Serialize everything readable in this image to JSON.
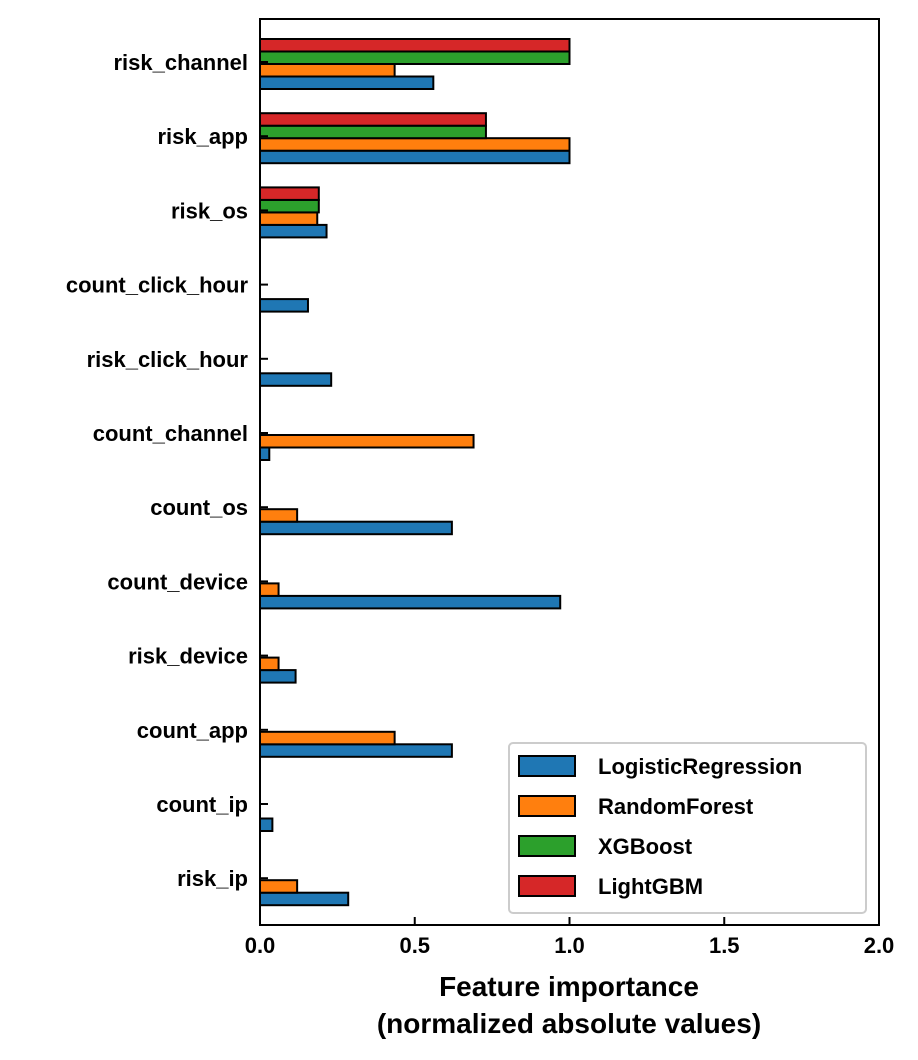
{
  "chart_data": {
    "type": "bar",
    "orientation": "horizontal",
    "categories": [
      "risk_channel",
      "risk_app",
      "risk_os",
      "count_click_hour",
      "risk_click_hour",
      "count_channel",
      "count_os",
      "count_device",
      "risk_device",
      "count_app",
      "count_ip",
      "risk_ip"
    ],
    "series": [
      {
        "name": "LogisticRegression",
        "color": "#1f77b4",
        "values": [
          0.56,
          1.0,
          0.215,
          0.155,
          0.23,
          0.03,
          0.62,
          0.97,
          0.115,
          0.62,
          0.04,
          0.285
        ]
      },
      {
        "name": "RandomForest",
        "color": "#ff7f0e",
        "values": [
          0.435,
          1.0,
          0.185,
          0.0,
          0.0,
          0.69,
          0.12,
          0.06,
          0.06,
          0.435,
          0.0,
          0.12
        ]
      },
      {
        "name": "XGBoost",
        "color": "#2ca02c",
        "values": [
          1.0,
          0.73,
          0.19,
          0.0,
          0.0,
          null,
          null,
          null,
          null,
          null,
          null,
          null
        ]
      },
      {
        "name": "LightGBM",
        "color": "#d62728",
        "values": [
          1.0,
          0.73,
          0.19,
          null,
          null,
          null,
          null,
          null,
          null,
          null,
          null,
          null
        ]
      }
    ],
    "xlabel": "Feature importance",
    "xlabel_line2": "(normalized absolute values)",
    "ylabel": "",
    "xlim": [
      0,
      2.0
    ],
    "xticks": [
      0.0,
      0.5,
      1.0,
      1.5,
      2.0
    ],
    "xtick_labels": [
      "0.0",
      "0.5",
      "1.0",
      "1.5",
      "2.0"
    ],
    "grid": false,
    "legend_position": "lower-right"
  }
}
